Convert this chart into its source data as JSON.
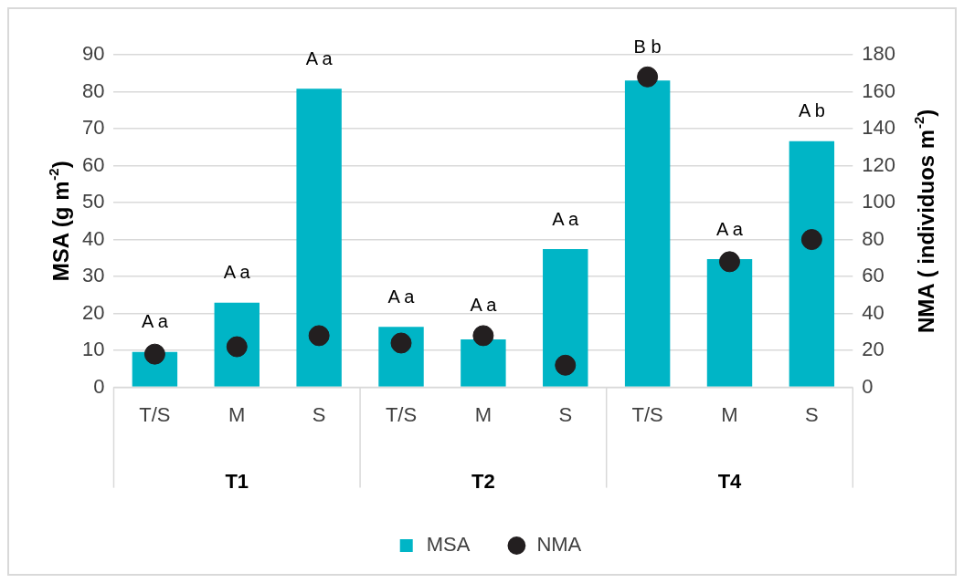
{
  "chart_data": {
    "type": "bar",
    "categories": [
      "T/S",
      "M",
      "S",
      "T/S",
      "M",
      "S",
      "T/S",
      "M",
      "S"
    ],
    "series": [
      {
        "name": "MSA",
        "color": "#00b5c6",
        "values": [
          9.6,
          22.9,
          80.8,
          16.4,
          13.0,
          37.4,
          83.0,
          34.7,
          66.6
        ],
        "value_labels": [
          "A a",
          "A a",
          "A a",
          "A a",
          "A a",
          "A a",
          "B b",
          "A a",
          "A b"
        ]
      },
      {
        "name": "NMA",
        "type": "scatter",
        "axis": "y2",
        "color": "#231f20",
        "marker": "circle",
        "values": [
          18,
          22,
          28,
          24,
          28,
          12,
          168,
          68,
          80
        ]
      }
    ],
    "ylabel": "MSA (g m$^{-2}$)",
    "y2label": "NMA ( individuos m$^{-2}$)",
    "ylim": [
      0,
      90
    ],
    "yticks": [
      0,
      10,
      20,
      30,
      40,
      50,
      60,
      70,
      80,
      90
    ],
    "y2lim": [
      0,
      180
    ],
    "y2ticks": [
      0,
      20,
      40,
      60,
      80,
      100,
      120,
      140,
      160,
      180
    ],
    "annotations": [
      "T1",
      "T2",
      "T4"
    ],
    "grid": "y",
    "legend": "bottom"
  }
}
